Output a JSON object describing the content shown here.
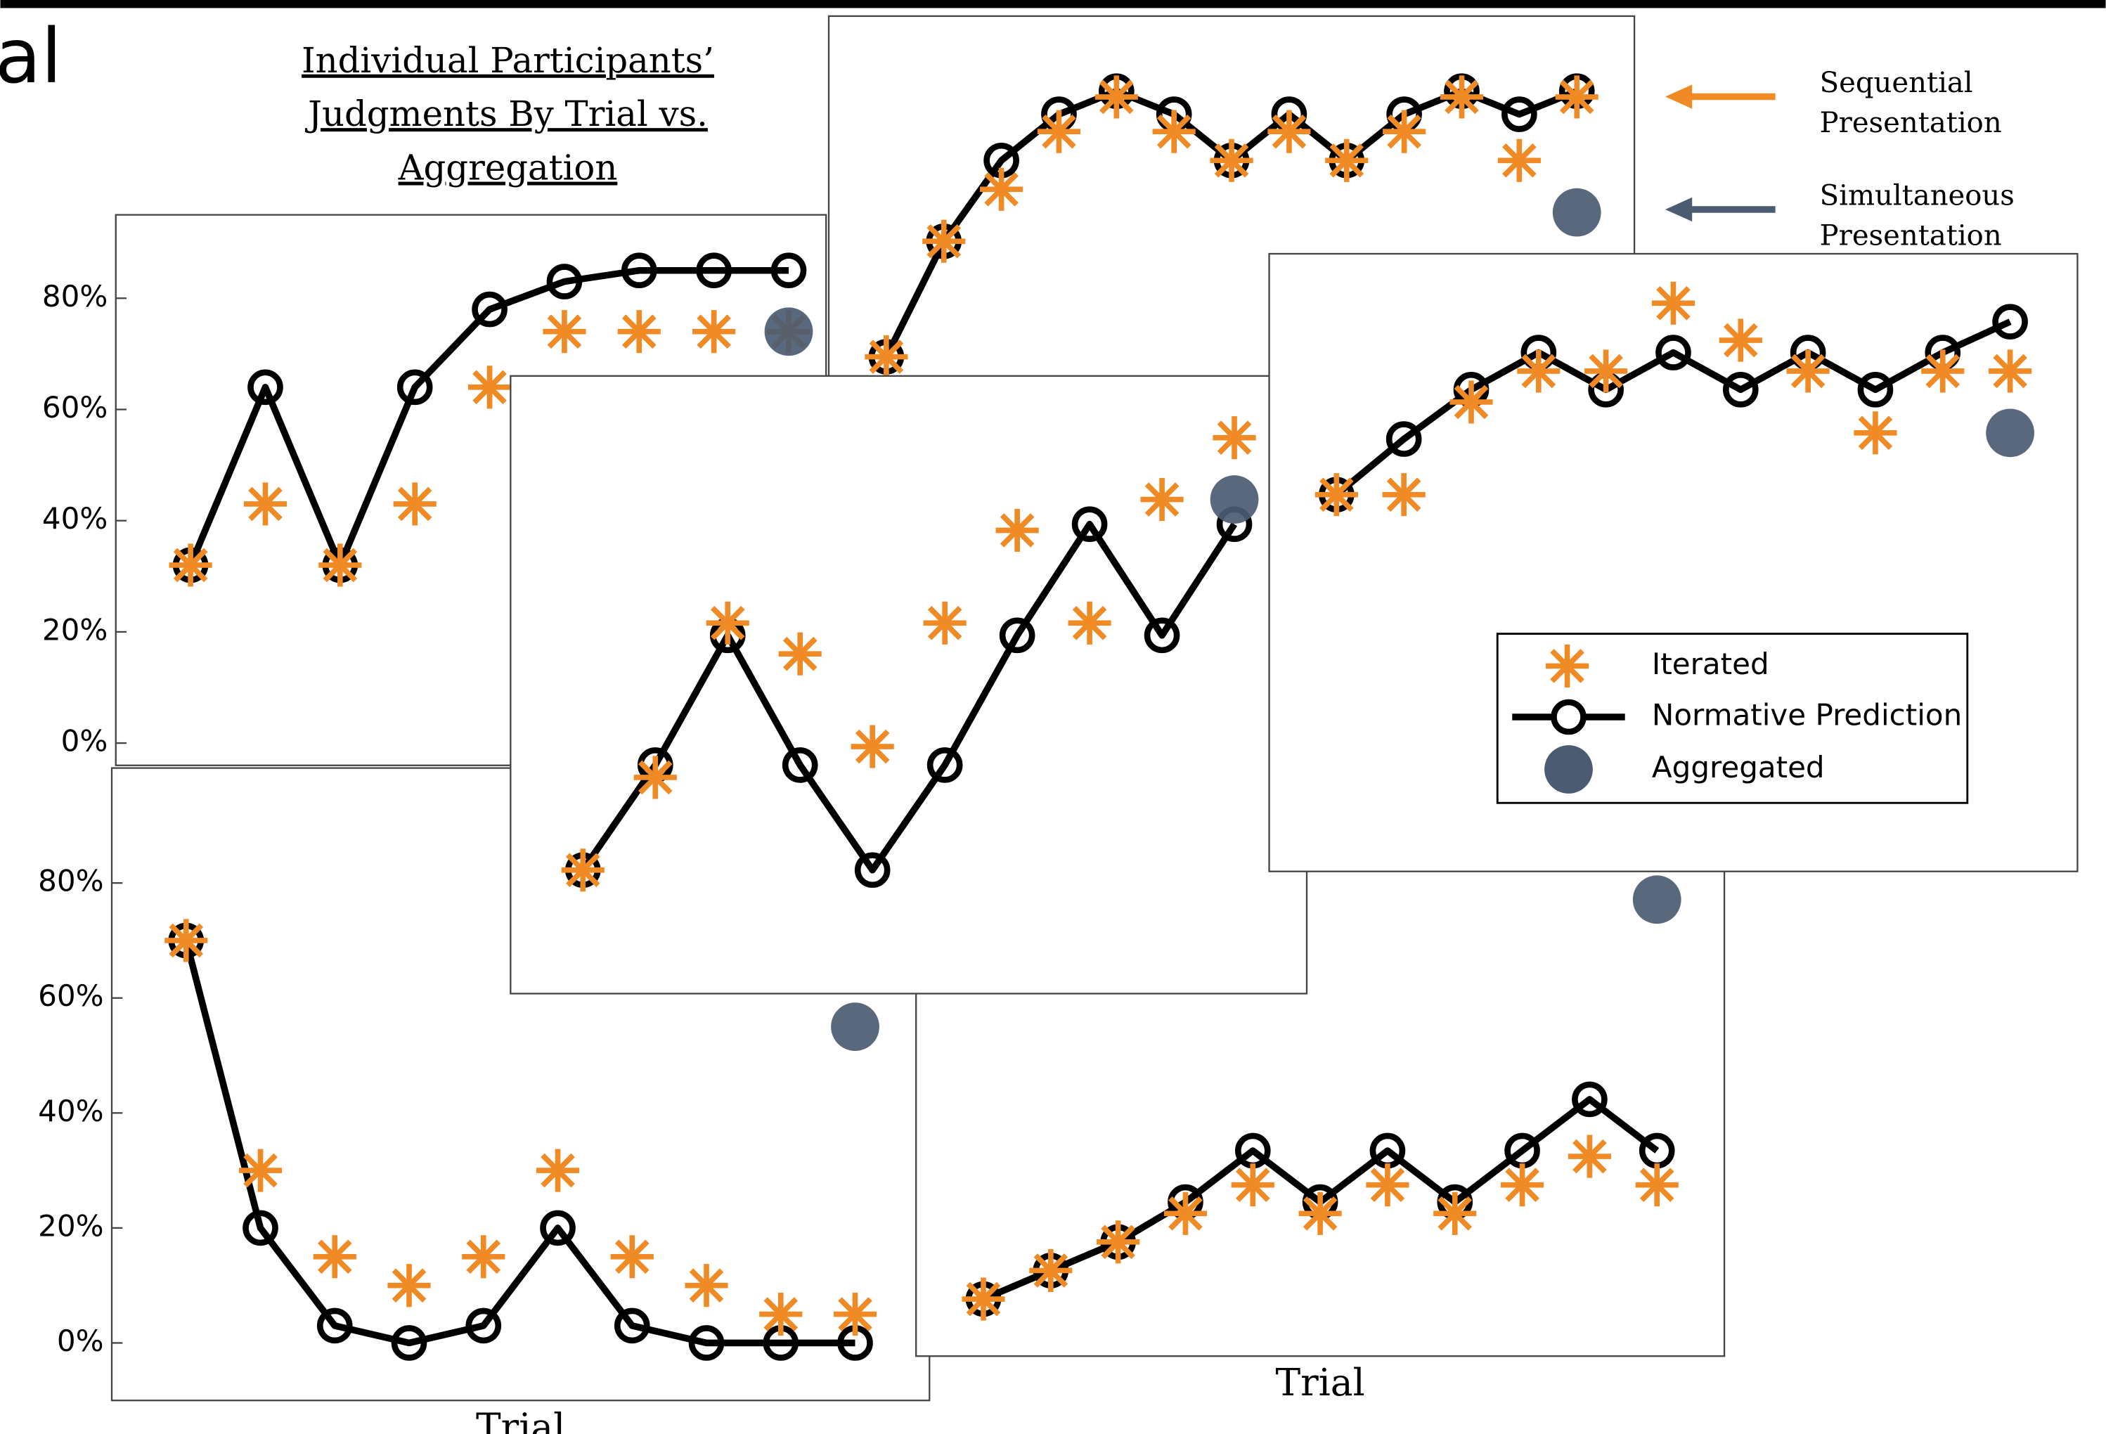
{
  "slide_title": "al",
  "heading": [
    "Individual Participants’",
    "Judgments By Trial vs.",
    "Aggregation"
  ],
  "annotations": [
    {
      "text": [
        "Sequential",
        "Presentation"
      ],
      "color": "#f08a24"
    },
    {
      "text": [
        "Simultaneous",
        "Presentation"
      ],
      "color": "#4b5b72"
    }
  ],
  "legend": [
    {
      "name": "Iterated",
      "color": "#f08a24"
    },
    {
      "name": "Normative Prediction",
      "color": "#000000"
    },
    {
      "name": "Aggregated",
      "color": "#4b5b72"
    }
  ],
  "chart_data": [
    {
      "type": "line",
      "x": [
        1,
        2,
        3,
        4,
        5,
        6,
        7,
        8,
        9
      ],
      "xlim": [
        0,
        9.5
      ],
      "ylim": [
        -4,
        95
      ],
      "yticks": [
        {
          "value": 0,
          "label": "0%"
        },
        {
          "value": 20,
          "label": "20%"
        },
        {
          "value": 40,
          "label": "40%"
        },
        {
          "value": 60,
          "label": "60%"
        },
        {
          "value": 80,
          "label": "80%"
        }
      ],
      "normative": [
        32,
        64,
        32,
        64,
        78,
        83,
        85,
        85,
        85
      ],
      "iterated": [
        32,
        43,
        32,
        43,
        64,
        74,
        74,
        74,
        74
      ],
      "aggregated": {
        "x": 9,
        "value": 74
      }
    },
    {
      "type": "line",
      "x": [
        1,
        2,
        3,
        4,
        5,
        6,
        7,
        8,
        9,
        10,
        11,
        12,
        13
      ],
      "xlim": [
        0,
        14
      ],
      "ylim": [
        20,
        110
      ],
      "normative": [
        51,
        71,
        85,
        93,
        97,
        93,
        85,
        93,
        85,
        93,
        97,
        93,
        97
      ],
      "iterated": [
        51,
        71,
        80,
        90,
        96,
        90,
        85,
        90,
        85,
        90,
        96,
        85,
        96
      ],
      "aggregated": {
        "x": 13,
        "value": 76
      }
    },
    {
      "type": "line",
      "x": [
        1,
        2,
        3,
        4,
        5,
        6,
        7,
        8,
        9,
        10
      ],
      "xlim": [
        0,
        11
      ],
      "ylim": [
        -10,
        100
      ],
      "yticks": [
        {
          "value": 0,
          "label": "0%"
        },
        {
          "value": 20,
          "label": "20%"
        },
        {
          "value": 40,
          "label": "40%"
        },
        {
          "value": 60,
          "label": "60%"
        },
        {
          "value": 80,
          "label": "80%"
        }
      ],
      "x_label": "Trial",
      "normative": [
        70,
        20,
        3,
        0,
        3,
        20,
        3,
        0,
        0,
        0
      ],
      "iterated": [
        70,
        30,
        15,
        10,
        15,
        30,
        15,
        10,
        5,
        5
      ],
      "aggregated": {
        "x": 10,
        "value": 55
      }
    },
    {
      "type": "line",
      "x": [
        1,
        2,
        3,
        4,
        5,
        6,
        7,
        8,
        9,
        10,
        11
      ],
      "xlim": [
        0,
        12
      ],
      "ylim": [
        0,
        100
      ],
      "x_label": "Trial",
      "normative": [
        10,
        15,
        20,
        27,
        36,
        27,
        36,
        27,
        36,
        45,
        36
      ],
      "iterated": [
        10,
        15,
        20,
        25,
        30,
        25,
        30,
        25,
        30,
        35,
        30
      ],
      "aggregated": {
        "x": 11,
        "value": 80
      }
    },
    {
      "type": "line",
      "x": [
        1,
        2,
        3,
        4,
        5,
        6,
        7,
        8,
        9,
        10
      ],
      "xlim": [
        0,
        11
      ],
      "ylim": [
        0,
        100
      ],
      "normative": [
        20,
        37,
        58,
        37,
        20,
        37,
        58,
        76,
        58,
        76
      ],
      "iterated": [
        20,
        35,
        60,
        55,
        40,
        60,
        75,
        60,
        80,
        90
      ],
      "aggregated": {
        "x": 10,
        "value": 80
      }
    },
    {
      "type": "line",
      "x": [
        1,
        2,
        3,
        4,
        5,
        6,
        7,
        8,
        9,
        10,
        11
      ],
      "xlim": [
        0,
        12
      ],
      "ylim": [
        0,
        100
      ],
      "normative": [
        61,
        70,
        78,
        84,
        78,
        84,
        78,
        84,
        78,
        84,
        89
      ],
      "iterated": [
        61,
        61,
        76,
        81,
        81,
        92,
        86,
        81,
        71,
        81,
        81
      ],
      "aggregated": {
        "x": 11,
        "value": 71
      }
    }
  ]
}
